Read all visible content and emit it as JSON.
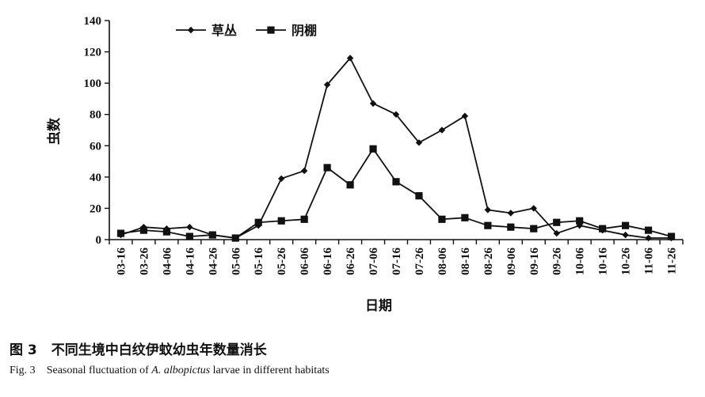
{
  "chart_data": {
    "type": "line",
    "categories": [
      "03-16",
      "03-26",
      "04-06",
      "04-16",
      "04-26",
      "05-06",
      "05-16",
      "05-26",
      "06-06",
      "06-16",
      "06-26",
      "07-06",
      "07-16",
      "07-26",
      "08-06",
      "08-16",
      "08-26",
      "09-06",
      "09-16",
      "09-26",
      "10-06",
      "10-16",
      "10-26",
      "11-06",
      "11-26"
    ],
    "series": [
      {
        "name": "草丛",
        "marker": "diamond",
        "color": "#111111",
        "values": [
          3,
          8,
          7,
          8,
          3,
          1,
          9,
          39,
          44,
          99,
          116,
          87,
          80,
          62,
          70,
          79,
          19,
          17,
          20,
          4,
          9,
          6,
          3,
          1,
          1
        ]
      },
      {
        "name": "阴棚",
        "marker": "square",
        "color": "#111111",
        "values": [
          4,
          6,
          5,
          2,
          3,
          1,
          11,
          12,
          13,
          46,
          35,
          58,
          37,
          28,
          13,
          14,
          9,
          8,
          7,
          11,
          12,
          7,
          9,
          6,
          2
        ]
      }
    ],
    "xlabel": "日期",
    "ylabel": "虫数",
    "ylim": [
      0,
      140
    ],
    "yticks": [
      0,
      20,
      40,
      60,
      80,
      100,
      120,
      140
    ],
    "grid": false,
    "legend_position": "top-left"
  },
  "caption": {
    "zh_prefix": "图 3",
    "zh_text": "不同生境中白纹伊蚊幼虫年数量消长",
    "en_prefix": "Fig. 3",
    "en_text_1": "Seasonal fluctuation of ",
    "en_italic_1": "A.",
    "en_text_2": " ",
    "en_italic_2": "albopictus",
    "en_text_3": " larvae in different habitats"
  }
}
